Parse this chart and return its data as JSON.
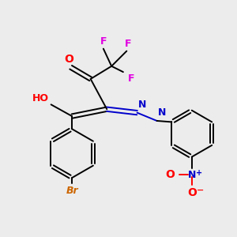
{
  "background_color": "#ececec",
  "bond_color": "#000000",
  "atom_colors": {
    "F": "#e000e0",
    "O": "#ff0000",
    "N": "#0000cc",
    "H": "#007070",
    "Br": "#cc6600",
    "C": "#000000"
  },
  "figsize": [
    3.0,
    3.0
  ],
  "dpi": 100
}
